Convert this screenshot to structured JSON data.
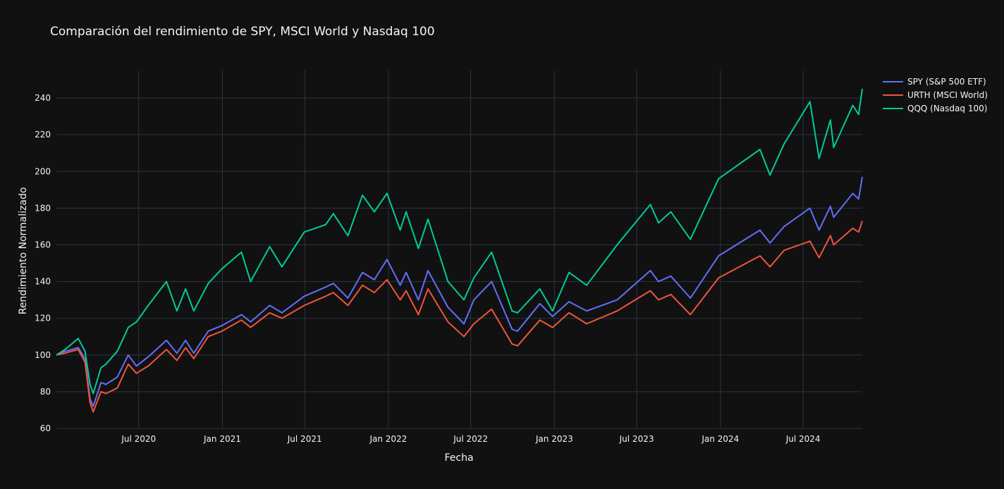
{
  "chart_data": {
    "type": "line",
    "title": "Comparación del rendimiento de SPY, MSCI World y Nasdaq 100",
    "xlabel": "Fecha",
    "ylabel": "Rendimiento Normalizado",
    "x_range": [
      "2020-01-02",
      "2024-11-08"
    ],
    "ylim": [
      60,
      255
    ],
    "x_ticks": [
      {
        "date": "2020-07-01",
        "label": "Jul 2020"
      },
      {
        "date": "2021-01-01",
        "label": "Jan 2021"
      },
      {
        "date": "2021-07-01",
        "label": "Jul 2021"
      },
      {
        "date": "2022-01-01",
        "label": "Jan 2022"
      },
      {
        "date": "2022-07-01",
        "label": "Jul 2022"
      },
      {
        "date": "2023-01-01",
        "label": "Jan 2023"
      },
      {
        "date": "2023-07-01",
        "label": "Jul 2023"
      },
      {
        "date": "2024-01-01",
        "label": "Jan 2024"
      },
      {
        "date": "2024-07-01",
        "label": "Jul 2024"
      }
    ],
    "y_ticks": [
      60,
      80,
      100,
      120,
      140,
      160,
      180,
      200,
      220,
      240
    ],
    "grid": true,
    "legend_position": "top-right",
    "series": [
      {
        "name": "SPY (S&P 500 ETF)",
        "color": "#636efa",
        "points": [
          [
            "2020-01-02",
            100
          ],
          [
            "2020-01-21",
            102
          ],
          [
            "2020-02-19",
            104
          ],
          [
            "2020-03-05",
            98
          ],
          [
            "2020-03-16",
            76
          ],
          [
            "2020-03-23",
            72
          ],
          [
            "2020-04-09",
            85
          ],
          [
            "2020-04-20",
            84
          ],
          [
            "2020-05-15",
            88
          ],
          [
            "2020-06-08",
            100
          ],
          [
            "2020-06-26",
            94
          ],
          [
            "2020-07-22",
            99
          ],
          [
            "2020-08-31",
            108
          ],
          [
            "2020-09-23",
            101
          ],
          [
            "2020-10-12",
            108
          ],
          [
            "2020-10-30",
            101
          ],
          [
            "2020-12-01",
            113
          ],
          [
            "2020-12-31",
            116
          ],
          [
            "2021-02-12",
            122
          ],
          [
            "2021-03-04",
            118
          ],
          [
            "2021-04-15",
            127
          ],
          [
            "2021-05-12",
            123
          ],
          [
            "2021-06-30",
            132
          ],
          [
            "2021-08-16",
            137
          ],
          [
            "2021-09-02",
            139
          ],
          [
            "2021-10-04",
            131
          ],
          [
            "2021-11-05",
            145
          ],
          [
            "2021-12-01",
            141
          ],
          [
            "2021-12-29",
            152
          ],
          [
            "2022-01-27",
            138
          ],
          [
            "2022-02-09",
            145
          ],
          [
            "2022-03-08",
            130
          ],
          [
            "2022-03-29",
            146
          ],
          [
            "2022-05-12",
            126
          ],
          [
            "2022-06-16",
            117
          ],
          [
            "2022-07-08",
            130
          ],
          [
            "2022-08-16",
            140
          ],
          [
            "2022-09-30",
            114
          ],
          [
            "2022-10-12",
            113
          ],
          [
            "2022-11-30",
            128
          ],
          [
            "2022-12-28",
            121
          ],
          [
            "2023-02-02",
            129
          ],
          [
            "2023-03-13",
            124
          ],
          [
            "2023-05-19",
            130
          ],
          [
            "2023-07-31",
            146
          ],
          [
            "2023-08-18",
            140
          ],
          [
            "2023-09-14",
            143
          ],
          [
            "2023-10-27",
            131
          ],
          [
            "2023-12-28",
            154
          ],
          [
            "2024-03-28",
            168
          ],
          [
            "2024-04-19",
            161
          ],
          [
            "2024-05-20",
            170
          ],
          [
            "2024-07-16",
            180
          ],
          [
            "2024-08-05",
            168
          ],
          [
            "2024-08-30",
            181
          ],
          [
            "2024-09-06",
            175
          ],
          [
            "2024-10-18",
            188
          ],
          [
            "2024-10-31",
            185
          ],
          [
            "2024-11-08",
            197
          ]
        ]
      },
      {
        "name": "URTH (MSCI World)",
        "color": "#ef553b",
        "points": [
          [
            "2020-01-02",
            100
          ],
          [
            "2020-01-21",
            101
          ],
          [
            "2020-02-19",
            103
          ],
          [
            "2020-03-05",
            96
          ],
          [
            "2020-03-16",
            74
          ],
          [
            "2020-03-23",
            69
          ],
          [
            "2020-04-09",
            80
          ],
          [
            "2020-04-20",
            79
          ],
          [
            "2020-05-15",
            82
          ],
          [
            "2020-06-08",
            95
          ],
          [
            "2020-06-26",
            90
          ],
          [
            "2020-07-22",
            94
          ],
          [
            "2020-08-31",
            103
          ],
          [
            "2020-09-23",
            97
          ],
          [
            "2020-10-12",
            104
          ],
          [
            "2020-10-30",
            98
          ],
          [
            "2020-12-01",
            110
          ],
          [
            "2020-12-31",
            113
          ],
          [
            "2021-02-12",
            119
          ],
          [
            "2021-03-04",
            115
          ],
          [
            "2021-04-15",
            123
          ],
          [
            "2021-05-12",
            120
          ],
          [
            "2021-06-30",
            127
          ],
          [
            "2021-08-16",
            132
          ],
          [
            "2021-09-02",
            134
          ],
          [
            "2021-10-04",
            127
          ],
          [
            "2021-11-05",
            138
          ],
          [
            "2021-12-01",
            134
          ],
          [
            "2021-12-29",
            141
          ],
          [
            "2022-01-27",
            130
          ],
          [
            "2022-02-09",
            135
          ],
          [
            "2022-03-08",
            122
          ],
          [
            "2022-03-29",
            136
          ],
          [
            "2022-05-12",
            118
          ],
          [
            "2022-06-16",
            110
          ],
          [
            "2022-07-08",
            117
          ],
          [
            "2022-08-16",
            125
          ],
          [
            "2022-09-30",
            106
          ],
          [
            "2022-10-12",
            105
          ],
          [
            "2022-11-30",
            119
          ],
          [
            "2022-12-28",
            115
          ],
          [
            "2023-02-02",
            123
          ],
          [
            "2023-03-13",
            117
          ],
          [
            "2023-05-19",
            124
          ],
          [
            "2023-07-31",
            135
          ],
          [
            "2023-08-18",
            130
          ],
          [
            "2023-09-14",
            133
          ],
          [
            "2023-10-27",
            122
          ],
          [
            "2023-12-28",
            142
          ],
          [
            "2024-03-28",
            154
          ],
          [
            "2024-04-19",
            148
          ],
          [
            "2024-05-20",
            157
          ],
          [
            "2024-07-16",
            162
          ],
          [
            "2024-08-05",
            153
          ],
          [
            "2024-08-30",
            165
          ],
          [
            "2024-09-06",
            160
          ],
          [
            "2024-10-18",
            169
          ],
          [
            "2024-10-31",
            167
          ],
          [
            "2024-11-08",
            173
          ]
        ]
      },
      {
        "name": "QQQ (Nasdaq 100)",
        "color": "#00cc96",
        "points": [
          [
            "2020-01-02",
            100
          ],
          [
            "2020-01-21",
            103
          ],
          [
            "2020-02-19",
            109
          ],
          [
            "2020-03-05",
            102
          ],
          [
            "2020-03-16",
            84
          ],
          [
            "2020-03-23",
            79
          ],
          [
            "2020-04-09",
            93
          ],
          [
            "2020-04-20",
            95
          ],
          [
            "2020-05-15",
            102
          ],
          [
            "2020-06-08",
            115
          ],
          [
            "2020-06-26",
            118
          ],
          [
            "2020-07-22",
            127
          ],
          [
            "2020-08-31",
            140
          ],
          [
            "2020-09-23",
            124
          ],
          [
            "2020-10-12",
            136
          ],
          [
            "2020-10-30",
            124
          ],
          [
            "2020-12-01",
            139
          ],
          [
            "2020-12-31",
            147
          ],
          [
            "2021-02-12",
            156
          ],
          [
            "2021-03-04",
            140
          ],
          [
            "2021-04-15",
            159
          ],
          [
            "2021-05-12",
            148
          ],
          [
            "2021-06-30",
            167
          ],
          [
            "2021-08-16",
            171
          ],
          [
            "2021-09-02",
            177
          ],
          [
            "2021-10-04",
            165
          ],
          [
            "2021-11-05",
            187
          ],
          [
            "2021-12-01",
            178
          ],
          [
            "2021-12-29",
            188
          ],
          [
            "2022-01-27",
            168
          ],
          [
            "2022-02-09",
            178
          ],
          [
            "2022-03-08",
            158
          ],
          [
            "2022-03-29",
            174
          ],
          [
            "2022-05-12",
            140
          ],
          [
            "2022-06-16",
            130
          ],
          [
            "2022-07-08",
            142
          ],
          [
            "2022-08-16",
            156
          ],
          [
            "2022-09-30",
            124
          ],
          [
            "2022-10-12",
            123
          ],
          [
            "2022-11-30",
            136
          ],
          [
            "2022-12-28",
            124
          ],
          [
            "2023-02-02",
            145
          ],
          [
            "2023-03-13",
            138
          ],
          [
            "2023-05-19",
            160
          ],
          [
            "2023-07-31",
            182
          ],
          [
            "2023-08-18",
            172
          ],
          [
            "2023-09-14",
            178
          ],
          [
            "2023-10-27",
            163
          ],
          [
            "2023-12-28",
            196
          ],
          [
            "2024-03-28",
            212
          ],
          [
            "2024-04-19",
            198
          ],
          [
            "2024-05-20",
            215
          ],
          [
            "2024-07-16",
            238
          ],
          [
            "2024-08-05",
            207
          ],
          [
            "2024-08-30",
            228
          ],
          [
            "2024-09-06",
            213
          ],
          [
            "2024-10-18",
            236
          ],
          [
            "2024-10-31",
            231
          ],
          [
            "2024-11-08",
            245
          ]
        ]
      }
    ]
  }
}
